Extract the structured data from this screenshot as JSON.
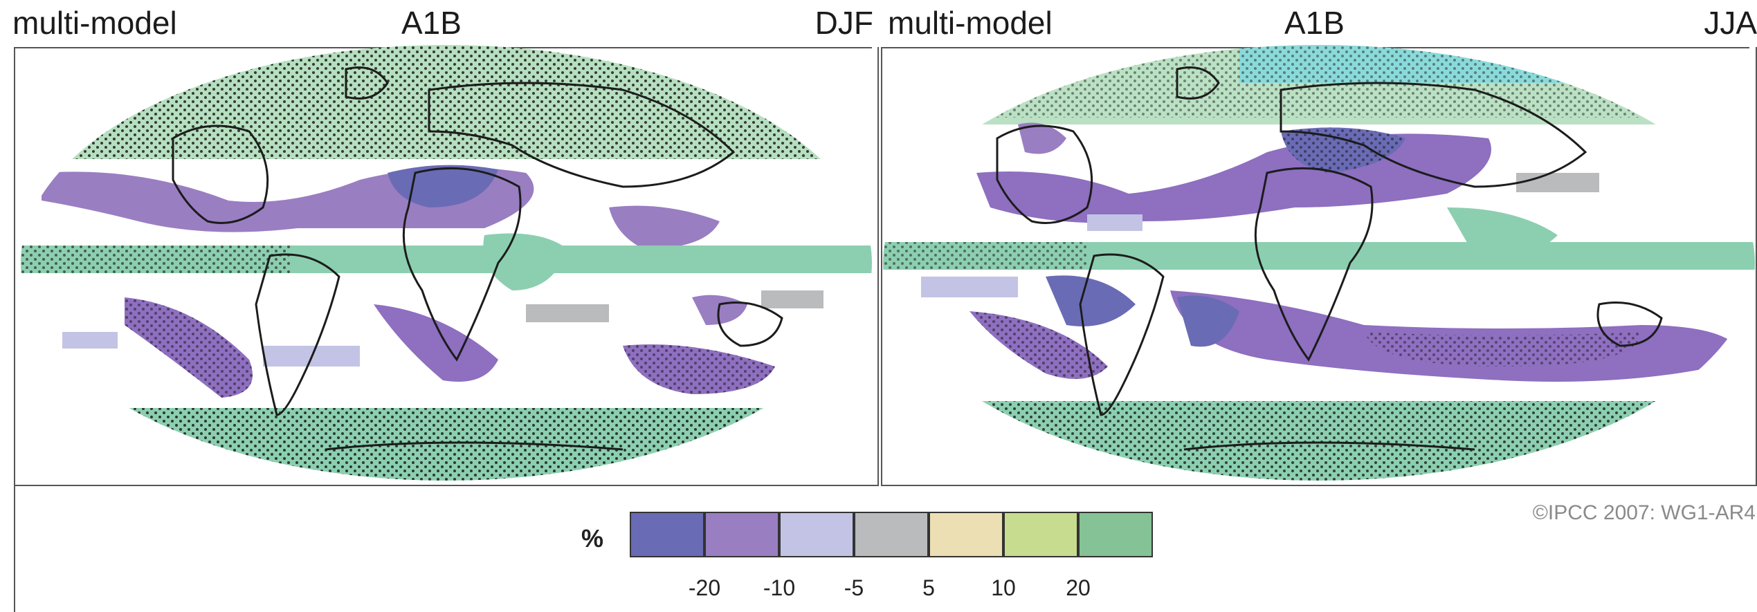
{
  "panels": [
    {
      "left_title": "multi-model",
      "scenario": "A1B",
      "season": "DJF"
    },
    {
      "left_title": "multi-model",
      "scenario": "A1B",
      "season": "JJA"
    }
  ],
  "copyright": "©IPCC  2007: WG1-AR4",
  "legend": {
    "unit": "%",
    "colors": [
      "#6a6bb5",
      "#9a7ec2",
      "#c3c3e5",
      "#b9bbbd",
      "#ecdfb4",
      "#c7dc8e",
      "#85c396"
    ],
    "ticks": [
      "-20",
      "-10",
      "-5",
      "5",
      "10",
      "20"
    ]
  },
  "colors": {
    "ocean_bg": "#ffffff",
    "wet_band": "#8ccfb0",
    "dry_band": "#8e6fc0",
    "strong_dry": "#6a6bb5",
    "arctic_cyan": "#7fd8e0",
    "coast": "#1c1c1c",
    "stipple": "#111111"
  }
}
